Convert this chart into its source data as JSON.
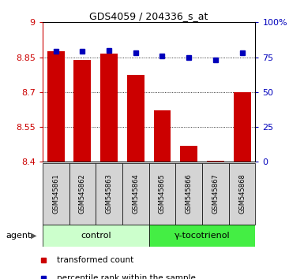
{
  "title": "GDS4059 / 204336_s_at",
  "samples": [
    "GSM545861",
    "GSM545862",
    "GSM545863",
    "GSM545864",
    "GSM545865",
    "GSM545866",
    "GSM545867",
    "GSM545868"
  ],
  "transformed_count": [
    8.875,
    8.84,
    8.865,
    8.775,
    8.62,
    8.47,
    8.405,
    8.7
  ],
  "percentile_rank": [
    79,
    79,
    80,
    78,
    76,
    75,
    73,
    78
  ],
  "ylim_left": [
    8.4,
    9.0
  ],
  "ylim_right": [
    0,
    100
  ],
  "yticks_left": [
    8.4,
    8.55,
    8.7,
    8.85,
    9.0
  ],
  "yticks_left_labels": [
    "8.4",
    "8.55",
    "8.7",
    "8.85",
    "9"
  ],
  "yticks_right": [
    0,
    25,
    50,
    75,
    100
  ],
  "yticks_right_labels": [
    "0",
    "25",
    "50",
    "75",
    "100%"
  ],
  "bar_color": "#cc0000",
  "dot_color": "#0000bb",
  "group_labels": [
    "control",
    "γ-tocotrienol"
  ],
  "group_ranges": [
    [
      0,
      4
    ],
    [
      4,
      8
    ]
  ],
  "group_color_light": "#ccffcc",
  "group_color_dark": "#44ee44",
  "agent_label": "agent",
  "legend_bar": "transformed count",
  "legend_dot": "percentile rank within the sample",
  "bar_bottom": 8.4,
  "bar_width": 0.65,
  "sample_box_color": "#d4d4d4",
  "title_fontsize": 9,
  "axis_fontsize": 8,
  "sample_fontsize": 6,
  "legend_fontsize": 7.5,
  "group_fontsize": 8
}
